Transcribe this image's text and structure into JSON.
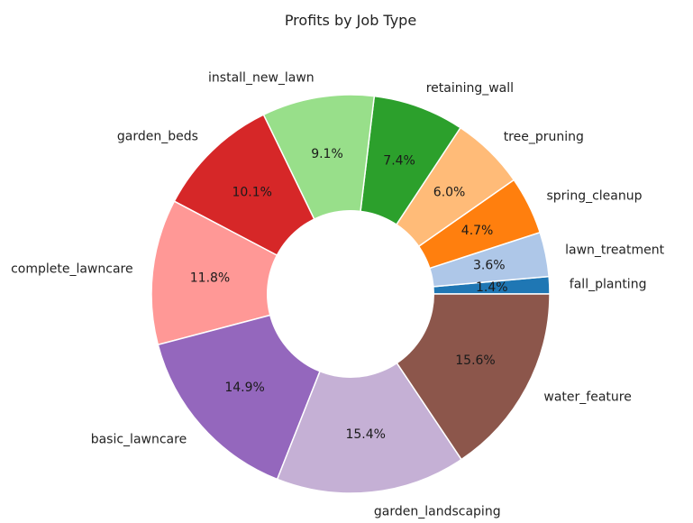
{
  "chart_data": {
    "type": "pie",
    "title": "Profits by Job Type",
    "categories": [
      "fall_planting",
      "lawn_treatment",
      "spring_cleanup",
      "tree_pruning",
      "retaining_wall",
      "install_new_lawn",
      "garden_beds",
      "complete_lawncare",
      "basic_lawncare",
      "garden_landscaping",
      "water_feature"
    ],
    "values": [
      1.4,
      3.6,
      4.7,
      6.0,
      7.4,
      9.1,
      10.1,
      11.8,
      14.9,
      15.4,
      15.6
    ],
    "percent_labels": [
      "1.4%",
      "3.6%",
      "4.7%",
      "6.0%",
      "7.4%",
      "9.1%",
      "10.1%",
      "11.8%",
      "14.9%",
      "15.4%",
      "15.6%"
    ],
    "colors": [
      "#1f77b4",
      "#aec7e8",
      "#ff7f0e",
      "#ffbb78",
      "#2ca02c",
      "#98df8a",
      "#d62728",
      "#ff9896",
      "#9467bd",
      "#c5b0d5",
      "#8c564b"
    ],
    "start_angle_deg": 0,
    "direction": "counterclockwise",
    "donut": true,
    "legend": "none"
  }
}
